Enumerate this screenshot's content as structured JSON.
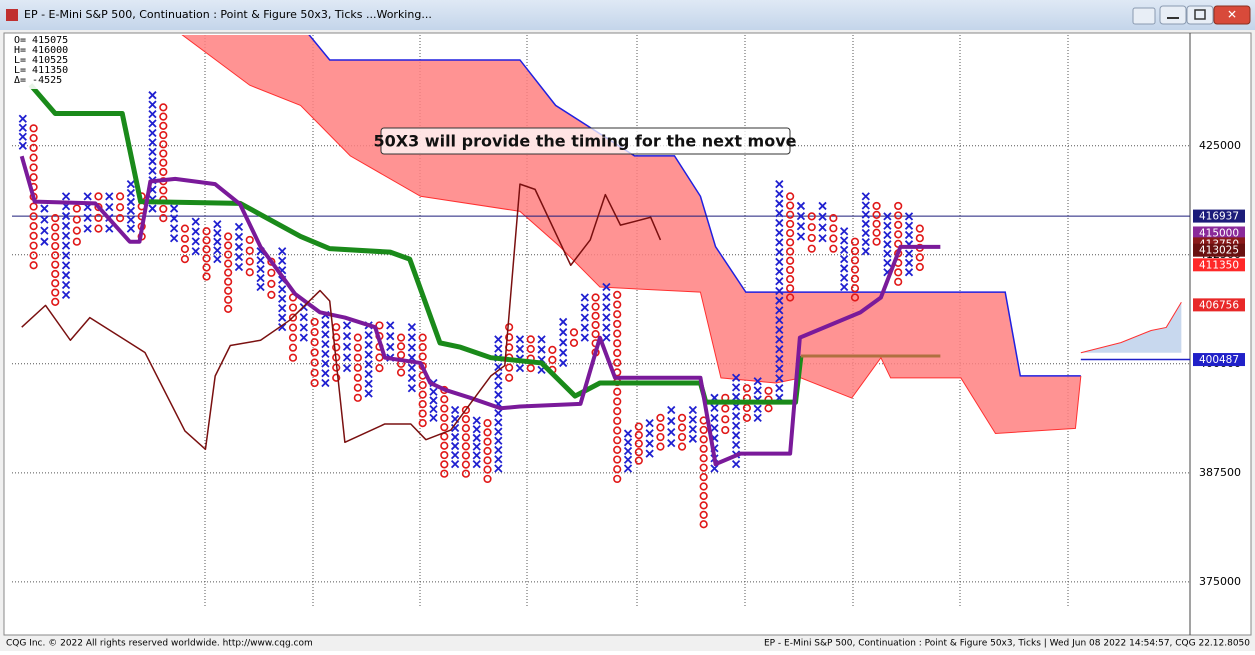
{
  "window": {
    "title": "EP - E-Mini S&P 500, Continuation : Point & Figure 50x3, Ticks ...Working..."
  },
  "footer": {
    "left": "CQG Inc. © 2022 All rights reserved worldwide. http://www.cqg.com",
    "right": "EP - E-Mini S&P 500, Continuation : Point & Figure 50x3, Ticks | Wed Jun 08 2022 14:54:57, CQG 22.12.8050"
  },
  "chart_data": {
    "type": "point_and_figure",
    "info": [
      "O= 415075",
      "H= 416000",
      "L= 410525",
      "L= 411350",
      "Δ=  -4525"
    ],
    "annotation": "50X3 will provide the timing for the next move",
    "xlim": [
      -1,
      108
    ],
    "ylim": [
      372000,
      437700
    ],
    "yticks": [
      375000,
      387500,
      400000,
      412500,
      425000
    ],
    "grid": true,
    "x_color": "#2020d0",
    "o_color": "#e01818",
    "columns": [
      {
        "box": "X",
        "high": 428100,
        "low": 425000
      },
      {
        "box": "O",
        "high": 427000,
        "low": 411300
      },
      {
        "box": "X",
        "high": 417800,
        "low": 414000
      },
      {
        "box": "O",
        "high": 416700,
        "low": 407100
      },
      {
        "box": "X",
        "high": 419200,
        "low": 407900
      },
      {
        "box": "O",
        "high": 417800,
        "low": 414000
      },
      {
        "box": "X",
        "high": 419200,
        "low": 415500
      },
      {
        "box": "O",
        "high": 419200,
        "low": 415500
      },
      {
        "box": "X",
        "high": 419200,
        "low": 415500
      },
      {
        "box": "O",
        "high": 419200,
        "low": 416700
      },
      {
        "box": "X",
        "high": 420600,
        "low": 415500
      },
      {
        "box": "O",
        "high": 419200,
        "low": 414600
      },
      {
        "box": "X",
        "high": 430800,
        "low": 417800
      },
      {
        "box": "O",
        "high": 429400,
        "low": 416700
      },
      {
        "box": "X",
        "high": 417800,
        "low": 414400
      },
      {
        "box": "O",
        "high": 415500,
        "low": 412000
      },
      {
        "box": "X",
        "high": 416300,
        "low": 412900
      },
      {
        "box": "O",
        "high": 415200,
        "low": 410000
      },
      {
        "box": "X",
        "high": 416000,
        "low": 412000
      },
      {
        "box": "O",
        "high": 414600,
        "low": 406300
      },
      {
        "box": "X",
        "high": 415700,
        "low": 411100
      },
      {
        "box": "O",
        "high": 414200,
        "low": 410500
      },
      {
        "box": "X",
        "high": 412900,
        "low": 408800
      },
      {
        "box": "O",
        "high": 411700,
        "low": 407900
      },
      {
        "box": "X",
        "high": 412900,
        "low": 404200
      },
      {
        "box": "O",
        "high": 407600,
        "low": 400700
      },
      {
        "box": "X",
        "high": 406500,
        "low": 403000
      },
      {
        "box": "O",
        "high": 404800,
        "low": 397800
      },
      {
        "box": "X",
        "high": 405600,
        "low": 397800
      },
      {
        "box": "O",
        "high": 404200,
        "low": 398400
      },
      {
        "box": "X",
        "high": 404400,
        "low": 399500
      },
      {
        "box": "O",
        "high": 403000,
        "low": 396100
      },
      {
        "box": "X",
        "high": 404400,
        "low": 396600
      },
      {
        "box": "O",
        "high": 404400,
        "low": 399500
      },
      {
        "box": "X",
        "high": 404400,
        "low": 400700
      },
      {
        "box": "O",
        "high": 403000,
        "low": 399000
      },
      {
        "box": "X",
        "high": 404200,
        "low": 397200
      },
      {
        "box": "O",
        "high": 403000,
        "low": 393200
      },
      {
        "box": "X",
        "high": 397800,
        "low": 393800
      },
      {
        "box": "O",
        "high": 397000,
        "low": 387400
      },
      {
        "box": "X",
        "high": 394700,
        "low": 388500
      },
      {
        "box": "O",
        "high": 394700,
        "low": 387400
      },
      {
        "box": "X",
        "high": 393500,
        "low": 388500
      },
      {
        "box": "O",
        "high": 393200,
        "low": 386800
      },
      {
        "box": "X",
        "high": 402800,
        "low": 388000
      },
      {
        "box": "O",
        "high": 404200,
        "low": 398400
      },
      {
        "box": "X",
        "high": 402800,
        "low": 399500
      },
      {
        "box": "O",
        "high": 402800,
        "low": 399500
      },
      {
        "box": "X",
        "high": 402800,
        "low": 399300
      },
      {
        "box": "O",
        "high": 401600,
        "low": 399300
      },
      {
        "box": "X",
        "high": 404800,
        "low": 400100
      },
      {
        "box": "O",
        "high": 403600,
        "low": 402400
      },
      {
        "box": "X",
        "high": 407600,
        "low": 403000
      },
      {
        "box": "O",
        "high": 407600,
        "low": 401300
      },
      {
        "box": "X",
        "high": 408800,
        "low": 403000
      },
      {
        "box": "O",
        "high": 407900,
        "low": 386800
      },
      {
        "box": "X",
        "high": 392000,
        "low": 388000
      },
      {
        "box": "O",
        "high": 392800,
        "low": 388900
      },
      {
        "box": "X",
        "high": 393200,
        "low": 389700
      },
      {
        "box": "O",
        "high": 393800,
        "low": 390500
      },
      {
        "box": "X",
        "high": 394700,
        "low": 390900
      },
      {
        "box": "O",
        "high": 393800,
        "low": 390500
      },
      {
        "box": "X",
        "high": 394700,
        "low": 391400
      },
      {
        "box": "O",
        "high": 393500,
        "low": 381600
      },
      {
        "box": "X",
        "high": 396100,
        "low": 388000
      },
      {
        "box": "O",
        "high": 396100,
        "low": 392400
      },
      {
        "box": "X",
        "high": 398400,
        "low": 388500
      },
      {
        "box": "O",
        "high": 397200,
        "low": 393800
      },
      {
        "box": "X",
        "high": 398000,
        "low": 393800
      },
      {
        "box": "O",
        "high": 396900,
        "low": 394900
      },
      {
        "box": "X",
        "high": 420600,
        "low": 396100
      },
      {
        "box": "O",
        "high": 419200,
        "low": 407600
      },
      {
        "box": "X",
        "high": 418100,
        "low": 414600
      },
      {
        "box": "O",
        "high": 416900,
        "low": 413200
      },
      {
        "box": "X",
        "high": 418100,
        "low": 414400
      },
      {
        "box": "O",
        "high": 416700,
        "low": 413200
      },
      {
        "box": "X",
        "high": 415200,
        "low": 408800
      },
      {
        "box": "O",
        "high": 414000,
        "low": 407600
      },
      {
        "box": "X",
        "high": 419200,
        "low": 412900
      },
      {
        "box": "O",
        "high": 418100,
        "low": 414000
      },
      {
        "box": "X",
        "high": 416900,
        "low": 410500
      },
      {
        "box": "O",
        "high": 418100,
        "low": 409400
      },
      {
        "box": "X",
        "high": 416900,
        "low": 410500
      },
      {
        "box": "O",
        "high": 415500,
        "low": 411100
      }
    ],
    "lines": [
      {
        "color": "#1a8a1a",
        "width": 5,
        "x": [
          0.7,
          3.0,
          9.2,
          10.9,
          20.1,
          25.7,
          28.4,
          34.0,
          35.8,
          38.6,
          40.5,
          43.3,
          48.0,
          51.1,
          53.4,
          62.7,
          63.2,
          71.5,
          72.0
        ],
        "values": [
          432000,
          428700,
          428700,
          418600,
          418400,
          414600,
          413200,
          412800,
          412000,
          402400,
          401900,
          400700,
          400100,
          396300,
          397800,
          397800,
          395600,
          395600,
          400900
        ]
      },
      {
        "color": "#7a1a9a",
        "width": 4,
        "x": [
          -0.1,
          1.1,
          6.7,
          9.9,
          10.8,
          11.8,
          14.1,
          17.8,
          20.1,
          22.0,
          25.2,
          27.5,
          29.8,
          32.6,
          33.5,
          36.8,
          37.7,
          39.1,
          41.4,
          44.2,
          46.0,
          51.6,
          53.4,
          54.8,
          62.7,
          64.1,
          66.4,
          71.0,
          71.9,
          77.5,
          79.4,
          81.2,
          84.9
        ],
        "values": [
          423800,
          418600,
          418400,
          414000,
          414000,
          420900,
          421200,
          420600,
          418300,
          413400,
          408000,
          405900,
          405300,
          404200,
          400700,
          400100,
          397800,
          397000,
          396100,
          394900,
          395100,
          395400,
          403000,
          398400,
          398400,
          388500,
          389700,
          389700,
          403000,
          405900,
          407600,
          413400,
          413400
        ]
      },
      {
        "color": "#7a1010",
        "width": 1.5,
        "x": [
          -0.1,
          2.1,
          4.4,
          6.2,
          11.3,
          15.0,
          16.9,
          17.8,
          19.2,
          22.0,
          24.7,
          27.5,
          28.4,
          29.8,
          33.5,
          35.9,
          37.3,
          39.6,
          43.3,
          44.6,
          46.0,
          47.4,
          50.7,
          52.5,
          53.9,
          55.3,
          58.1,
          59.0
        ],
        "values": [
          404200,
          406700,
          402700,
          405300,
          401300,
          392300,
          390200,
          398600,
          402100,
          402700,
          405000,
          408400,
          407200,
          391000,
          393100,
          393100,
          391300,
          392400,
          398600,
          399800,
          420600,
          420000,
          411300,
          414200,
          419400,
          415900,
          416800,
          414200
        ]
      },
      {
        "color": "#b07040",
        "width": 3,
        "x": [
          72.0,
          84.9
        ],
        "values": [
          400900,
          400900
        ]
      }
    ],
    "cloud": {
      "fill": "#ff8080",
      "upper": {
        "color": "#2020e0",
        "x": [
          14.1,
          26.1,
          28.4,
          46.0,
          49.3,
          56.6,
          60.3,
          62.7,
          64.1,
          66.9,
          90.9,
          92.3,
          97.9
        ],
        "values": [
          438310,
          438310,
          434840,
          434840,
          429630,
          423840,
          423840,
          419210,
          413430,
          408220,
          408220,
          398610,
          398610
        ]
      },
      "lower": {
        "color": "#ff3030",
        "x": [
          14.1,
          21.0,
          25.7,
          30.3,
          36.8,
          46.0,
          49.7,
          53.4,
          62.7,
          64.6,
          69.7,
          72.0,
          76.7,
          79.4,
          80.3,
          86.8,
          90.0,
          97.4,
          97.9
        ],
        "values": [
          438310,
          431940,
          429630,
          423840,
          419210,
          417480,
          413430,
          408800,
          408220,
          398380,
          397800,
          398380,
          396070,
          400700,
          398380,
          398380,
          392010,
          392590,
          398610
        ]
      }
    },
    "future": {
      "fill": "#c8d8ee",
      "color": "#ff3030",
      "x": [
        97.9,
        101.6,
        104.4,
        105.8,
        107.2
      ],
      "values": [
        401270,
        402430,
        403820,
        404170,
        407060
      ]
    },
    "price_tags": [
      {
        "value": 416937,
        "color": "#1c1c7a",
        "line": true
      },
      {
        "value": 415000,
        "color": "#8a2a9a"
      },
      {
        "value": 413750,
        "color": "#8a1a1a"
      },
      {
        "value": 413025,
        "color": "#6a1010"
      },
      {
        "value": 411350,
        "color": "#ff2828"
      },
      {
        "value": 406756,
        "color": "#e82828"
      },
      {
        "value": 400487,
        "color": "#2020c8"
      }
    ]
  }
}
